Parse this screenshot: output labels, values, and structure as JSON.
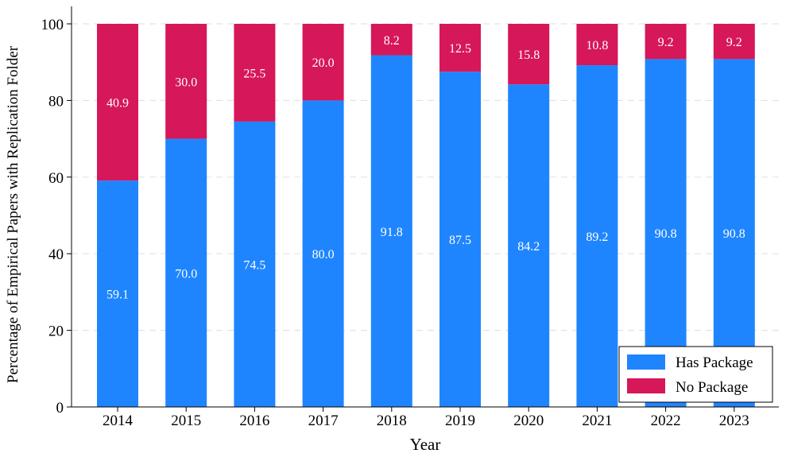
{
  "chart_data": {
    "type": "bar",
    "stacked": true,
    "title": "",
    "xlabel": "Year",
    "ylabel": "Percentage of Empirical Papers with Replication Folder",
    "categories": [
      "2014",
      "2015",
      "2016",
      "2017",
      "2018",
      "2019",
      "2020",
      "2021",
      "2022",
      "2023"
    ],
    "series": [
      {
        "name": "Has Package",
        "color": "#1f85ff",
        "values": [
          59.1,
          70.0,
          74.5,
          80.0,
          91.8,
          87.5,
          84.2,
          89.2,
          90.8,
          90.8
        ],
        "labels": [
          "59.1",
          "70.0",
          "74.5",
          "80.0",
          "91.8",
          "87.5",
          "84.2",
          "89.2",
          "90.8",
          "90.8"
        ]
      },
      {
        "name": "No Package",
        "color": "#d6175a",
        "values": [
          40.9,
          30.0,
          25.5,
          20.0,
          8.2,
          12.5,
          15.8,
          10.8,
          9.2,
          9.2
        ],
        "labels": [
          "40.9",
          "30.0",
          "25.5",
          "20.0",
          "8.2",
          "12.5",
          "15.8",
          "10.8",
          "9.2",
          "9.2"
        ]
      }
    ],
    "ylim": [
      0,
      100
    ],
    "yticks": [
      "0",
      "20",
      "40",
      "60",
      "80",
      "100"
    ],
    "grid": true,
    "legend_position": "bottom-right",
    "label_color": "#ffffff"
  }
}
